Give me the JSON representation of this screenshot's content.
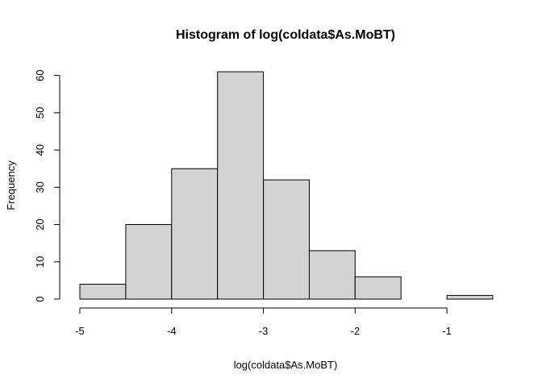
{
  "chart_data": {
    "type": "bar",
    "title": "Histogram of log(coldata$As.MoBT)",
    "xlabel": "log(coldata$As.MoBT)",
    "ylabel": "Frequency",
    "bins": [
      {
        "start": -5.0,
        "end": -4.5,
        "count": 4
      },
      {
        "start": -4.5,
        "end": -4.0,
        "count": 20
      },
      {
        "start": -4.0,
        "end": -3.5,
        "count": 35
      },
      {
        "start": -3.5,
        "end": -3.0,
        "count": 61
      },
      {
        "start": -3.0,
        "end": -2.5,
        "count": 32
      },
      {
        "start": -2.5,
        "end": -2.0,
        "count": 13
      },
      {
        "start": -2.0,
        "end": -1.5,
        "count": 6
      },
      {
        "start": -1.5,
        "end": -1.0,
        "count": 0
      },
      {
        "start": -1.0,
        "end": -0.5,
        "count": 1
      }
    ],
    "xlim": [
      -5.0,
      -0.5
    ],
    "ylim": [
      0,
      61
    ],
    "x_ticks": [
      -5,
      -4,
      -3,
      -2,
      -1
    ],
    "x_tick_labels": [
      "-5",
      "-4",
      "-3",
      "-2",
      "-1"
    ],
    "y_ticks": [
      0,
      10,
      20,
      30,
      40,
      50,
      60
    ],
    "y_tick_labels": [
      "0",
      "10",
      "20",
      "30",
      "40",
      "50",
      "60"
    ],
    "bar_color": "#d3d3d3",
    "border_color": "#000000",
    "grid": false
  }
}
